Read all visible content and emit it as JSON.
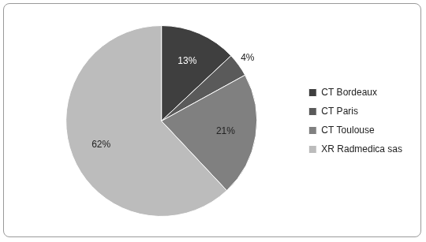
{
  "chart_data": {
    "type": "pie",
    "categories": [
      "CT Bordeaux",
      "CT Paris",
      "CT Toulouse",
      "XR Radmedica sas"
    ],
    "values": [
      13,
      4,
      21,
      62
    ],
    "value_labels": [
      "13%",
      "4%",
      "21%",
      "62%"
    ],
    "colors": [
      "#3f3f3f",
      "#5a5a5a",
      "#808080",
      "#bcbcbc"
    ],
    "data_labels": true,
    "legend": "right"
  }
}
